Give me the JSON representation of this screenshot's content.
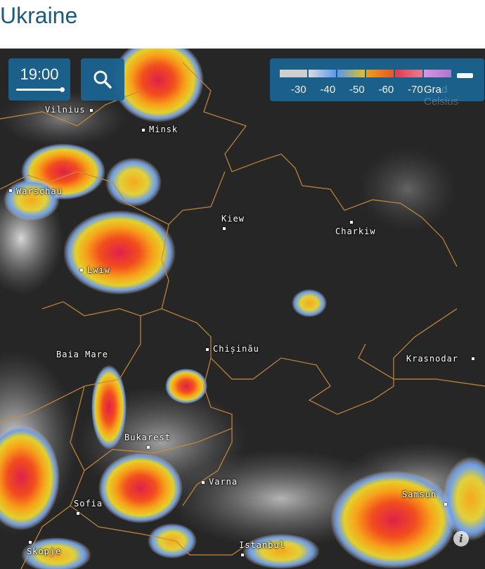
{
  "header": {
    "title": "Ukraine"
  },
  "controls": {
    "time": "19:00",
    "search_icon": "search-icon"
  },
  "legend": {
    "labels": [
      "-30",
      "-40",
      "-50",
      "-60",
      "-70"
    ],
    "unit_visible": "Gra",
    "unit_faded": "d Celsius",
    "colors": [
      "#d6d6d6",
      "#5f9cf4",
      "#e9c62a",
      "#f8581b",
      "#ee3a4e",
      "#b678d8"
    ]
  },
  "cities": [
    {
      "name": "Vilnius"
    },
    {
      "name": "Minsk"
    },
    {
      "name": "Warschau"
    },
    {
      "name": "Kiew"
    },
    {
      "name": "Charkiw"
    },
    {
      "name": "Lwiw"
    },
    {
      "name": "Baia Mare"
    },
    {
      "name": "Chișinău"
    },
    {
      "name": "Krasnodar"
    },
    {
      "name": "Bukarest"
    },
    {
      "name": "Varna"
    },
    {
      "name": "Sofia"
    },
    {
      "name": "Samsun"
    },
    {
      "name": "Skopje"
    },
    {
      "name": "Istanbul"
    }
  ],
  "info": {
    "label": "i"
  }
}
